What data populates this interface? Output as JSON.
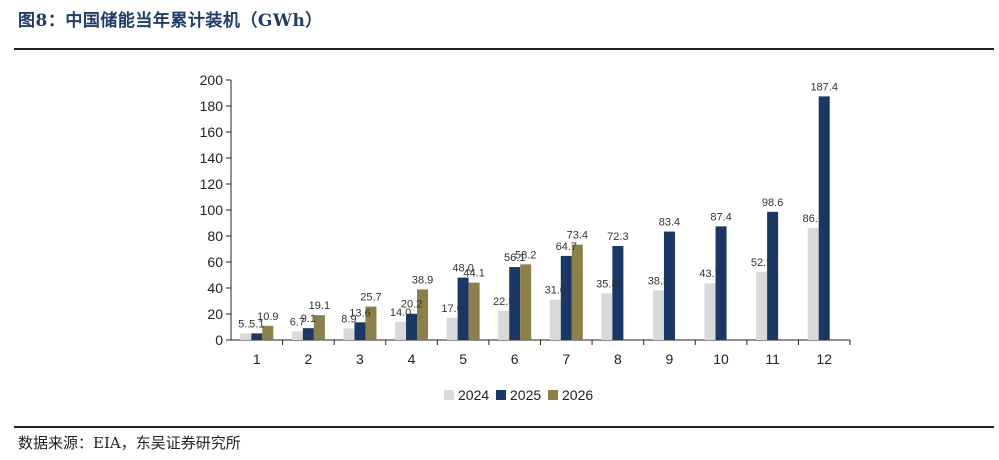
{
  "header": {
    "title": "图8：中国储能当年累计装机（GWh）"
  },
  "footer": {
    "source": "数据来源：EIA，东吴证券研究所"
  },
  "chart_data": {
    "type": "bar",
    "categories": [
      "1",
      "2",
      "3",
      "4",
      "5",
      "6",
      "7",
      "8",
      "9",
      "10",
      "11",
      "12"
    ],
    "ylim": [
      0,
      200
    ],
    "yticks": [
      0,
      20,
      40,
      60,
      80,
      100,
      120,
      140,
      160,
      180,
      200
    ],
    "series": [
      {
        "name": "2024",
        "color": "#d9d9d9",
        "values": [
          5.1,
          6.7,
          8.9,
          14.0,
          17.0,
          22.5,
          31.0,
          35.8,
          38.2,
          43.7,
          52.5,
          86.1
        ],
        "labels": [
          "5...",
          "6.7",
          "8.9",
          "14.0",
          "17.0",
          "22.5",
          "31.0",
          "35.8",
          "38.2",
          "43.7",
          "52.5",
          "86.1"
        ]
      },
      {
        "name": "2025",
        "color": "#1a3765",
        "values": [
          5.1,
          9.1,
          13.6,
          20.2,
          48.0,
          56.1,
          64.7,
          72.3,
          83.4,
          87.4,
          98.6,
          187.4
        ],
        "labels": [
          "5.1",
          "9.1",
          "13.6",
          "20.2",
          "48.0",
          "56.1",
          "64.7",
          "72.3",
          "83.4",
          "87.4",
          "98.6",
          "187.4"
        ]
      },
      {
        "name": "2026",
        "color": "#8c7f4a",
        "values": [
          10.9,
          19.1,
          25.7,
          38.9,
          44.1,
          58.2,
          73.4,
          null,
          null,
          null,
          null,
          null
        ],
        "labels": [
          "10.9",
          "19.1",
          "25.7",
          "38.9",
          "44.1",
          "58.2",
          "73.4",
          null,
          null,
          null,
          null,
          null
        ]
      }
    ],
    "legend_position": "bottom-center"
  }
}
